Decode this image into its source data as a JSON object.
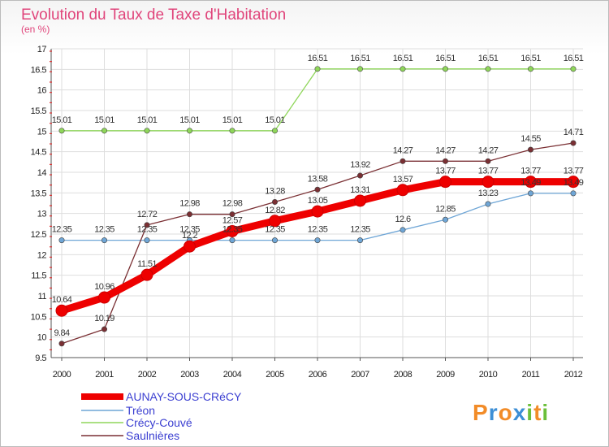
{
  "chart_data": {
    "type": "line",
    "title": "Evolution du Taux de Taxe d'Habitation",
    "unit": "(en %)",
    "ylim": [
      9.5,
      17
    ],
    "yticks": [
      9.5,
      10,
      10.5,
      11,
      11.5,
      12,
      12.5,
      13,
      13.5,
      14,
      14.5,
      15,
      15.5,
      16,
      16.5,
      17
    ],
    "x": [
      "2000",
      "2001",
      "2002",
      "2003",
      "2004",
      "2005",
      "2006",
      "2007",
      "2008",
      "2009",
      "2010",
      "2011",
      "2012"
    ],
    "grid": true,
    "legend": "bottom-left",
    "series": [
      {
        "name": "AUNAY-SOUS-CRéCY",
        "color": "#ee0000",
        "values": [
          10.64,
          10.96,
          11.51,
          12.2,
          12.57,
          12.82,
          13.05,
          13.31,
          13.57,
          13.77,
          13.77,
          13.77,
          13.77
        ],
        "labels": [
          "10.64",
          "10.96",
          "11.51",
          "12.2",
          "12.57",
          "12.82",
          "13.05",
          "13.31",
          "13.57",
          "13.77",
          "13.77",
          "13.77",
          "13.77"
        ]
      },
      {
        "name": "Tréon",
        "color": "#6fa6d6",
        "values": [
          12.35,
          12.35,
          12.35,
          12.35,
          12.35,
          12.35,
          12.35,
          12.35,
          12.6,
          12.85,
          13.23,
          13.49,
          13.49
        ],
        "labels": [
          "12.35",
          "12.35",
          "12.35",
          "12.35",
          "12.35",
          "12.35",
          "12.35",
          "12.35",
          "12.6",
          "12.85",
          "13.23",
          "13.49",
          "13.49"
        ]
      },
      {
        "name": "Crécy-Couvé",
        "color": "#8fd65a",
        "values": [
          15.01,
          15.01,
          15.01,
          15.01,
          15.01,
          15.01,
          16.51,
          16.51,
          16.51,
          16.51,
          16.51,
          16.51,
          16.51
        ],
        "labels": [
          "15.01",
          "15.01",
          "15.01",
          "15.01",
          "15.01",
          "15.01",
          "16.51",
          "16.51",
          "16.51",
          "16.51",
          "16.51",
          "16.51",
          "16.51"
        ]
      },
      {
        "name": "Saulnières",
        "color": "#7a2f33",
        "values": [
          9.84,
          10.19,
          12.72,
          12.98,
          12.98,
          13.28,
          13.58,
          13.92,
          14.27,
          14.27,
          14.27,
          14.55,
          14.71
        ],
        "labels": [
          "9.84",
          "10.19",
          "12.72",
          "12.98",
          "12.98",
          "13.28",
          "13.58",
          "13.92",
          "14.27",
          "14.27",
          "14.27",
          "14.55",
          "14.71"
        ]
      }
    ]
  },
  "logo": {
    "letters": [
      "P",
      "r",
      "o",
      "x",
      "i",
      "t",
      "i"
    ],
    "colors": [
      "#f28c28",
      "#3d8fd6",
      "#f28c28",
      "#3d8fd6",
      "#6bbf3a",
      "#f28c28",
      "#6bbf3a"
    ]
  }
}
